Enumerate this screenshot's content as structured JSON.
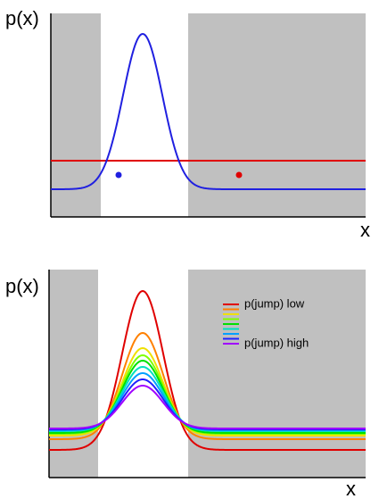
{
  "top": {
    "y_label": "p(x)",
    "x_label": "x"
  },
  "bottom": {
    "y_label": "p(x)",
    "x_label": "x",
    "legend": {
      "low": "p(jump) low",
      "high": "p(jump) high"
    }
  }
}
